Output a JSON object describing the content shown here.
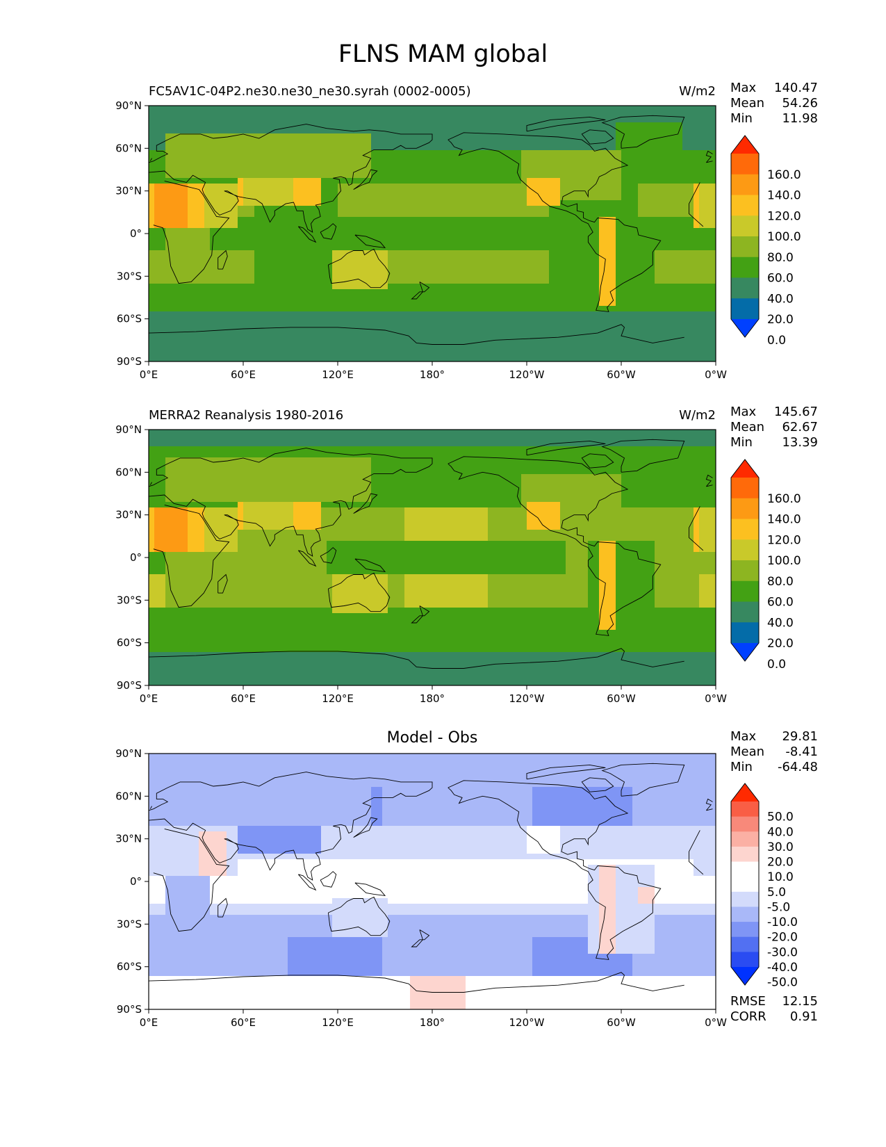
{
  "title": "FLNS MAM global",
  "panels": [
    {
      "id": "test",
      "left_title": "FC5AV1C-04P2.ne30.ne30_ne30.syrah (0002-0005)",
      "right_title": "W/m2",
      "center_title": "",
      "stats": [
        {
          "label": "Max",
          "value": "140.47"
        },
        {
          "label": "Mean",
          "value": "54.26"
        },
        {
          "label": "Min",
          "value": "11.98"
        }
      ]
    },
    {
      "id": "ref",
      "left_title": "MERRA2 Reanalysis 1980-2016",
      "right_title": "W/m2",
      "center_title": "",
      "stats": [
        {
          "label": "Max",
          "value": "145.67"
        },
        {
          "label": "Mean",
          "value": "62.67"
        },
        {
          "label": "Min",
          "value": "13.39"
        }
      ]
    },
    {
      "id": "diff",
      "left_title": "",
      "right_title": "",
      "center_title": "Model - Obs",
      "stats": [
        {
          "label": "Max",
          "value": "29.81"
        },
        {
          "label": "Mean",
          "value": "-8.41"
        },
        {
          "label": "Min",
          "value": "-64.48"
        }
      ],
      "metrics": [
        {
          "label": "RMSE",
          "value": "12.15"
        },
        {
          "label": "CORR",
          "value": "0.91"
        }
      ]
    }
  ],
  "axes": {
    "x_ticks": [
      "0°E",
      "60°E",
      "120°E",
      "180°",
      "120°W",
      "60°W",
      "0°W"
    ],
    "y_ticks": [
      "90°N",
      "60°N",
      "30°N",
      "0°",
      "30°S",
      "60°S",
      "90°S"
    ]
  },
  "colorbars": {
    "abs": {
      "labels": [
        "160.0",
        "140.0",
        "120.0",
        "100.0",
        "80.0",
        "60.0",
        "40.0",
        "20.0",
        "0.0"
      ],
      "colors": [
        "#ff2a00",
        "#ff6a0a",
        "#fd9a14",
        "#fcc020",
        "#c9c92a",
        "#8db521",
        "#43a114",
        "#378860",
        "#046ca8",
        "#0040ff"
      ]
    },
    "diff": {
      "labels": [
        "50.0",
        "40.0",
        "30.0",
        "20.0",
        "10.0",
        "5.0",
        "-5.0",
        "-10.0",
        "-20.0",
        "-30.0",
        "-40.0",
        "-50.0"
      ],
      "colors": [
        "#ff2a00",
        "#f95e45",
        "#f8897a",
        "#fbb0a4",
        "#fdd5cf",
        "#ffffff",
        "#ffffff",
        "#d3dbfb",
        "#a9b8f8",
        "#7f95f5",
        "#5270f2",
        "#2a4cf2",
        "#0032ff"
      ]
    }
  },
  "chart_data": [
    {
      "type": "heatmap",
      "title": "FC5AV1C-04P2.ne30.ne30_ne30.syrah (0002-0005)",
      "units": "W/m2",
      "x_range": [
        0,
        360
      ],
      "y_range": [
        -90,
        90
      ],
      "levels": [
        0,
        20,
        40,
        60,
        80,
        100,
        120,
        140,
        160
      ],
      "stats": {
        "max": 140.47,
        "mean": 54.26,
        "min": 11.98
      }
    },
    {
      "type": "heatmap",
      "title": "MERRA2 Reanalysis 1980-2016",
      "units": "W/m2",
      "x_range": [
        0,
        360
      ],
      "y_range": [
        -90,
        90
      ],
      "levels": [
        0,
        20,
        40,
        60,
        80,
        100,
        120,
        140,
        160
      ],
      "stats": {
        "max": 145.67,
        "mean": 62.67,
        "min": 13.39
      }
    },
    {
      "type": "heatmap",
      "title": "Model - Obs",
      "x_range": [
        0,
        360
      ],
      "y_range": [
        -90,
        90
      ],
      "levels": [
        -50,
        -40,
        -30,
        -20,
        -10,
        -5,
        5,
        10,
        20,
        30,
        40,
        50
      ],
      "stats": {
        "max": 29.81,
        "mean": -8.41,
        "min": -64.48,
        "rmse": 12.15,
        "corr": 0.91
      }
    }
  ]
}
